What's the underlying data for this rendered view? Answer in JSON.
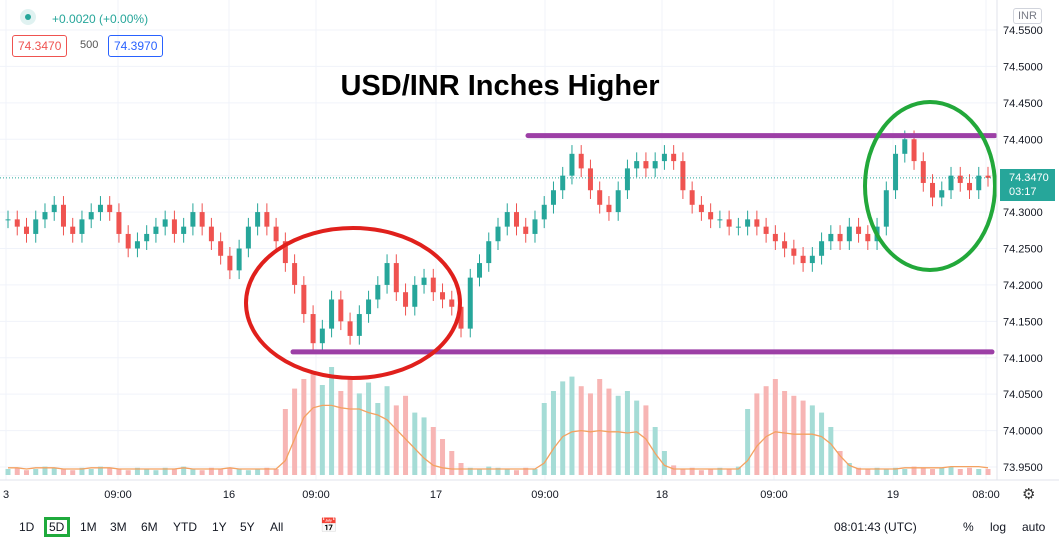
{
  "header": {
    "change": "+0.0020 (+0.00%)",
    "bid": "74.3470",
    "spread": "500",
    "ask": "74.3970"
  },
  "title": "USD/INR Inches Higher",
  "currency_badge": "INR",
  "price_tag": {
    "price": "74.3470",
    "countdown": "03:17"
  },
  "bottom": {
    "ranges": [
      "1D",
      "5D",
      "1M",
      "3M",
      "6M",
      "YTD",
      "1Y",
      "5Y",
      "All"
    ],
    "selected": "5D",
    "time": "08:01:43 (UTC)",
    "percent": "%",
    "log": "log",
    "auto": "auto"
  },
  "colors": {
    "up": "#26a69a",
    "down": "#ef5350",
    "volume_ma": "#f4a261",
    "resistance": "#9c3fa6",
    "support": "#9c3fa6",
    "circle_left": "#e0201c",
    "circle_right": "#22a83a"
  },
  "chart_data": {
    "type": "candlestick",
    "y_ticks": [
      "74.5500",
      "74.5000",
      "74.4500",
      "74.4000",
      "74.3500",
      "74.3000",
      "74.2500",
      "74.2000",
      "74.1500",
      "74.1000",
      "74.0500",
      "74.0000",
      "73.9500"
    ],
    "x_ticks": [
      "3",
      "09:00",
      "16",
      "09:00",
      "17",
      "09:00",
      "18",
      "09:00",
      "19",
      "08:00"
    ],
    "ylim": [
      73.93,
      74.58
    ],
    "current_price": 74.347,
    "resistance": 74.405,
    "support": 74.108,
    "series_close": [
      74.29,
      74.28,
      74.27,
      74.29,
      74.3,
      74.31,
      74.28,
      74.27,
      74.29,
      74.3,
      74.31,
      74.3,
      74.27,
      74.25,
      74.26,
      74.27,
      74.28,
      74.29,
      74.27,
      74.28,
      74.3,
      74.28,
      74.26,
      74.24,
      74.22,
      74.25,
      74.28,
      74.3,
      74.28,
      74.26,
      74.23,
      74.2,
      74.16,
      74.12,
      74.14,
      74.18,
      74.15,
      74.13,
      74.16,
      74.18,
      74.2,
      74.23,
      74.19,
      74.17,
      74.2,
      74.21,
      74.19,
      74.18,
      74.17,
      74.14,
      74.21,
      74.23,
      74.26,
      74.28,
      74.3,
      74.28,
      74.27,
      74.29,
      74.31,
      74.33,
      74.35,
      74.38,
      74.36,
      74.33,
      74.31,
      74.3,
      74.33,
      74.36,
      74.37,
      74.36,
      74.37,
      74.38,
      74.37,
      74.33,
      74.31,
      74.3,
      74.29,
      74.29,
      74.28,
      74.28,
      74.29,
      74.28,
      74.27,
      74.26,
      74.25,
      74.24,
      74.23,
      74.24,
      74.26,
      74.27,
      74.26,
      74.28,
      74.27,
      74.26,
      74.28,
      74.33,
      74.38,
      74.4,
      74.37,
      74.34,
      74.32,
      74.33,
      74.35,
      74.34,
      74.33,
      74.35,
      74.347
    ],
    "volume": [
      0.05,
      0.06,
      0.04,
      0.05,
      0.07,
      0.06,
      0.05,
      0.04,
      0.06,
      0.05,
      0.07,
      0.06,
      0.05,
      0.04,
      0.06,
      0.05,
      0.04,
      0.06,
      0.05,
      0.07,
      0.05,
      0.04,
      0.06,
      0.05,
      0.06,
      0.05,
      0.04,
      0.05,
      0.06,
      0.05,
      0.55,
      0.72,
      0.8,
      0.86,
      0.75,
      0.9,
      0.7,
      0.82,
      0.68,
      0.77,
      0.6,
      0.74,
      0.58,
      0.66,
      0.52,
      0.48,
      0.4,
      0.3,
      0.2,
      0.1,
      0.06,
      0.05,
      0.07,
      0.06,
      0.05,
      0.04,
      0.06,
      0.05,
      0.6,
      0.7,
      0.78,
      0.82,
      0.74,
      0.68,
      0.8,
      0.72,
      0.66,
      0.7,
      0.62,
      0.58,
      0.4,
      0.2,
      0.08,
      0.05,
      0.06,
      0.04,
      0.05,
      0.06,
      0.05,
      0.07,
      0.55,
      0.68,
      0.74,
      0.8,
      0.7,
      0.66,
      0.62,
      0.58,
      0.52,
      0.4,
      0.2,
      0.1,
      0.06,
      0.05,
      0.06,
      0.05,
      0.06,
      0.05,
      0.07,
      0.06,
      0.05,
      0.06,
      0.07,
      0.05,
      0.06,
      0.05,
      0.05
    ],
    "volume_ma": [
      0.06,
      0.06,
      0.05,
      0.06,
      0.06,
      0.06,
      0.05,
      0.05,
      0.05,
      0.06,
      0.06,
      0.06,
      0.05,
      0.05,
      0.05,
      0.05,
      0.05,
      0.05,
      0.05,
      0.06,
      0.05,
      0.05,
      0.05,
      0.05,
      0.06,
      0.05,
      0.05,
      0.05,
      0.05,
      0.05,
      0.12,
      0.3,
      0.48,
      0.56,
      0.58,
      0.58,
      0.56,
      0.55,
      0.55,
      0.52,
      0.5,
      0.46,
      0.38,
      0.3,
      0.22,
      0.14,
      0.08,
      0.06,
      0.05,
      0.05,
      0.05,
      0.05,
      0.05,
      0.05,
      0.05,
      0.05,
      0.05,
      0.05,
      0.1,
      0.22,
      0.32,
      0.36,
      0.37,
      0.36,
      0.37,
      0.36,
      0.36,
      0.35,
      0.36,
      0.3,
      0.18,
      0.08,
      0.05,
      0.05,
      0.05,
      0.05,
      0.05,
      0.05,
      0.05,
      0.05,
      0.12,
      0.24,
      0.32,
      0.36,
      0.35,
      0.34,
      0.34,
      0.34,
      0.32,
      0.26,
      0.16,
      0.08,
      0.05,
      0.05,
      0.05,
      0.05,
      0.05,
      0.06,
      0.06,
      0.06,
      0.06,
      0.06,
      0.07,
      0.07,
      0.07,
      0.07,
      0.06
    ]
  }
}
